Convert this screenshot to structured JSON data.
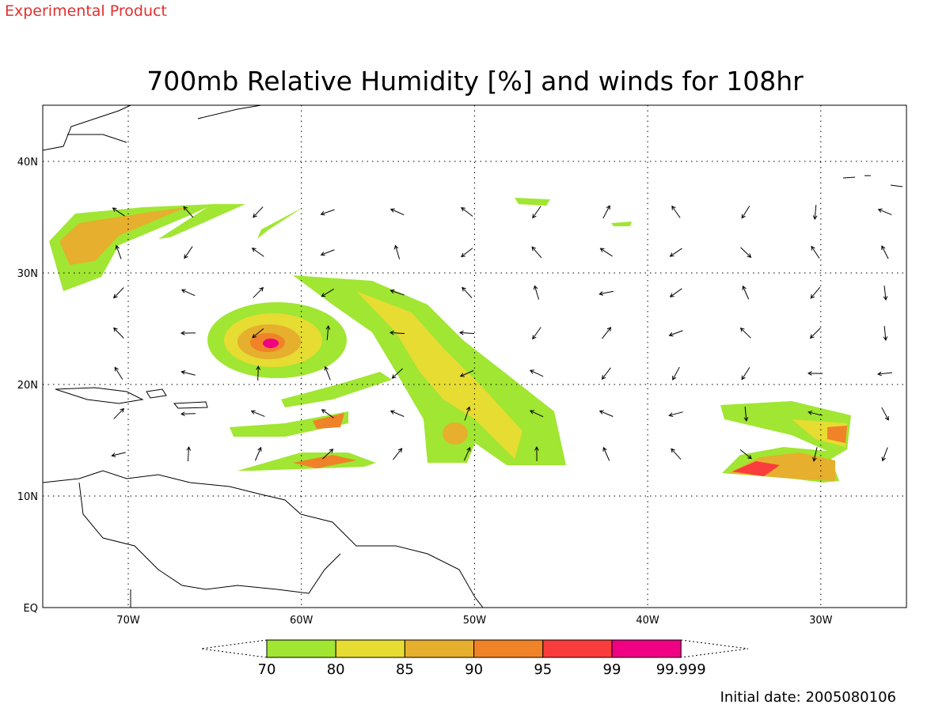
{
  "header": {
    "product": "Experimental Product",
    "title": "700mb Relative Humidity [%] and winds for 108hr"
  },
  "map": {
    "lat_labels": [
      "40N",
      "30N",
      "20N",
      "10N",
      "EQ"
    ],
    "lon_labels": [
      "70W",
      "60W",
      "50W",
      "40W",
      "30W"
    ]
  },
  "colorbar": {
    "labels": [
      "70",
      "80",
      "85",
      "90",
      "95",
      "99",
      "99.999"
    ],
    "colors": [
      "#a0e632",
      "#e6dc32",
      "#e6af2d",
      "#f08228",
      "#fa3c3c",
      "#f00082"
    ]
  },
  "footer": {
    "initial_date": "Initial date: 2005080106"
  }
}
